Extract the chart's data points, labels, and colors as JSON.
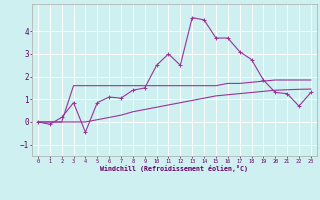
{
  "xlabel": "Windchill (Refroidissement éolien,°C)",
  "background_color": "#cff0f0",
  "grid_color": "#ffffff",
  "line_color": "#993399",
  "xlim": [
    -0.5,
    23.5
  ],
  "ylim": [
    -1.5,
    5.2
  ],
  "yticks": [
    -1,
    0,
    1,
    2,
    3,
    4
  ],
  "xticks": [
    0,
    1,
    2,
    3,
    4,
    5,
    6,
    7,
    8,
    9,
    10,
    11,
    12,
    13,
    14,
    15,
    16,
    17,
    18,
    19,
    20,
    21,
    22,
    23
  ],
  "series": [
    [
      0.0,
      -0.1,
      0.2,
      0.85,
      -0.45,
      0.85,
      1.1,
      1.05,
      1.4,
      1.5,
      2.5,
      3.0,
      2.5,
      4.6,
      4.5,
      3.7,
      3.7,
      3.1,
      2.75,
      1.85,
      1.3,
      1.25,
      0.7,
      1.3
    ],
    [
      0.0,
      0.0,
      0.0,
      1.6,
      1.6,
      1.6,
      1.6,
      1.6,
      1.6,
      1.6,
      1.6,
      1.6,
      1.6,
      1.6,
      1.6,
      1.6,
      1.7,
      1.7,
      1.75,
      1.8,
      1.85,
      1.85,
      1.85,
      1.85
    ],
    [
      0.0,
      0.0,
      0.0,
      0.0,
      0.0,
      0.1,
      0.2,
      0.3,
      0.45,
      0.55,
      0.65,
      0.75,
      0.85,
      0.95,
      1.05,
      1.15,
      1.2,
      1.25,
      1.3,
      1.35,
      1.4,
      1.42,
      1.44,
      1.45
    ]
  ]
}
